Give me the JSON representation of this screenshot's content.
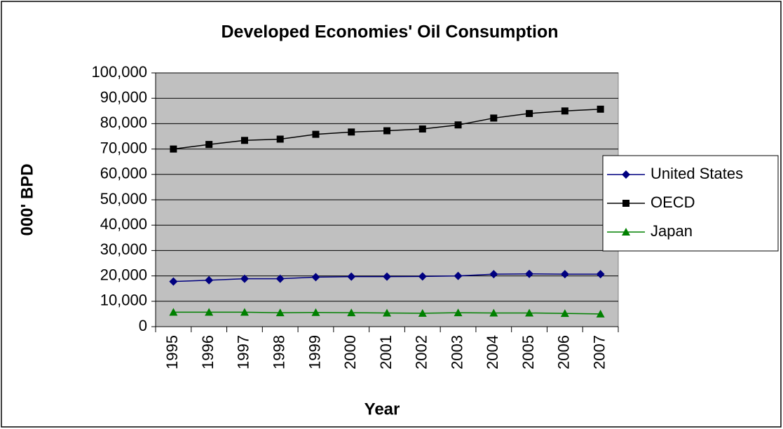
{
  "chart_data": {
    "type": "line",
    "title": "Developed Economies' Oil Consumption",
    "x_label": "Year",
    "y_label": "000' BPD",
    "categories": [
      "1995",
      "1996",
      "1997",
      "1998",
      "1999",
      "2000",
      "2001",
      "2002",
      "2003",
      "2004",
      "2005",
      "2006",
      "2007"
    ],
    "series": [
      {
        "name": "United States",
        "color": "#000080",
        "marker": "diamond",
        "values": [
          17800,
          18300,
          18900,
          18900,
          19500,
          19700,
          19700,
          19800,
          20000,
          20700,
          20800,
          20700,
          20700
        ]
      },
      {
        "name": "OECD",
        "color": "#000000",
        "marker": "square",
        "values": [
          70000,
          71800,
          73400,
          73900,
          75800,
          76700,
          77200,
          77900,
          79500,
          82200,
          84000,
          85000,
          85700
        ]
      },
      {
        "name": "Japan",
        "color": "#008000",
        "marker": "triangle",
        "values": [
          5700,
          5700,
          5700,
          5500,
          5600,
          5500,
          5400,
          5300,
          5500,
          5400,
          5400,
          5200,
          5000
        ]
      }
    ],
    "ylim": [
      0,
      100000
    ],
    "yticks": [
      0,
      {
        "value": 10000,
        "label": "10,000"
      },
      {
        "value": 20000,
        "label": "20,000"
      },
      {
        "value": 30000,
        "label": "30,000"
      },
      {
        "value": 40000,
        "label": "40,000"
      },
      {
        "value": 50000,
        "label": "50,000"
      },
      {
        "value": 60000,
        "label": "60,000"
      },
      {
        "value": 70000,
        "label": "70,000"
      },
      {
        "value": 80000,
        "label": "80,000"
      },
      {
        "value": 90000,
        "label": "90,000"
      },
      {
        "value": 100000,
        "label": "100,000"
      }
    ],
    "grid": true,
    "legend": "right"
  }
}
